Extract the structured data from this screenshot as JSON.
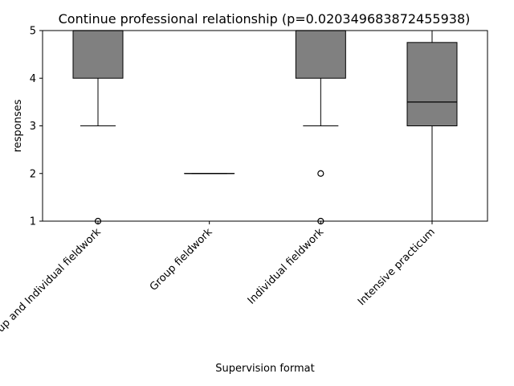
{
  "chart_data": {
    "type": "box",
    "title": "Continue professional relationship (p=0.020349683872455938)",
    "xlabel": "Supervision format",
    "ylabel": "responses",
    "ylim": [
      1,
      5
    ],
    "yticks": [
      "1",
      "2",
      "3",
      "4",
      "5"
    ],
    "grid": false,
    "categories": [
      "Group and Individual fieldwork",
      "Group fieldwork",
      "Individual fieldwork",
      "Intensive practicum"
    ],
    "boxes": [
      {
        "q1": 4,
        "median": 5,
        "q3": 5,
        "whisker_low": 3,
        "whisker_high": 5,
        "outliers": [
          1
        ]
      },
      {
        "q1": 2,
        "median": 2,
        "q3": 2,
        "whisker_low": 2,
        "whisker_high": 2,
        "outliers": []
      },
      {
        "q1": 4,
        "median": 5,
        "q3": 5,
        "whisker_low": 3,
        "whisker_high": 5,
        "outliers": [
          2,
          1
        ]
      },
      {
        "q1": 3,
        "median": 3.5,
        "q3": 4.75,
        "whisker_low": 1,
        "whisker_high": 5,
        "outliers": []
      }
    ],
    "colors": {
      "box_fill": "#808080",
      "edge": "#000000",
      "background": "#ffffff"
    }
  }
}
